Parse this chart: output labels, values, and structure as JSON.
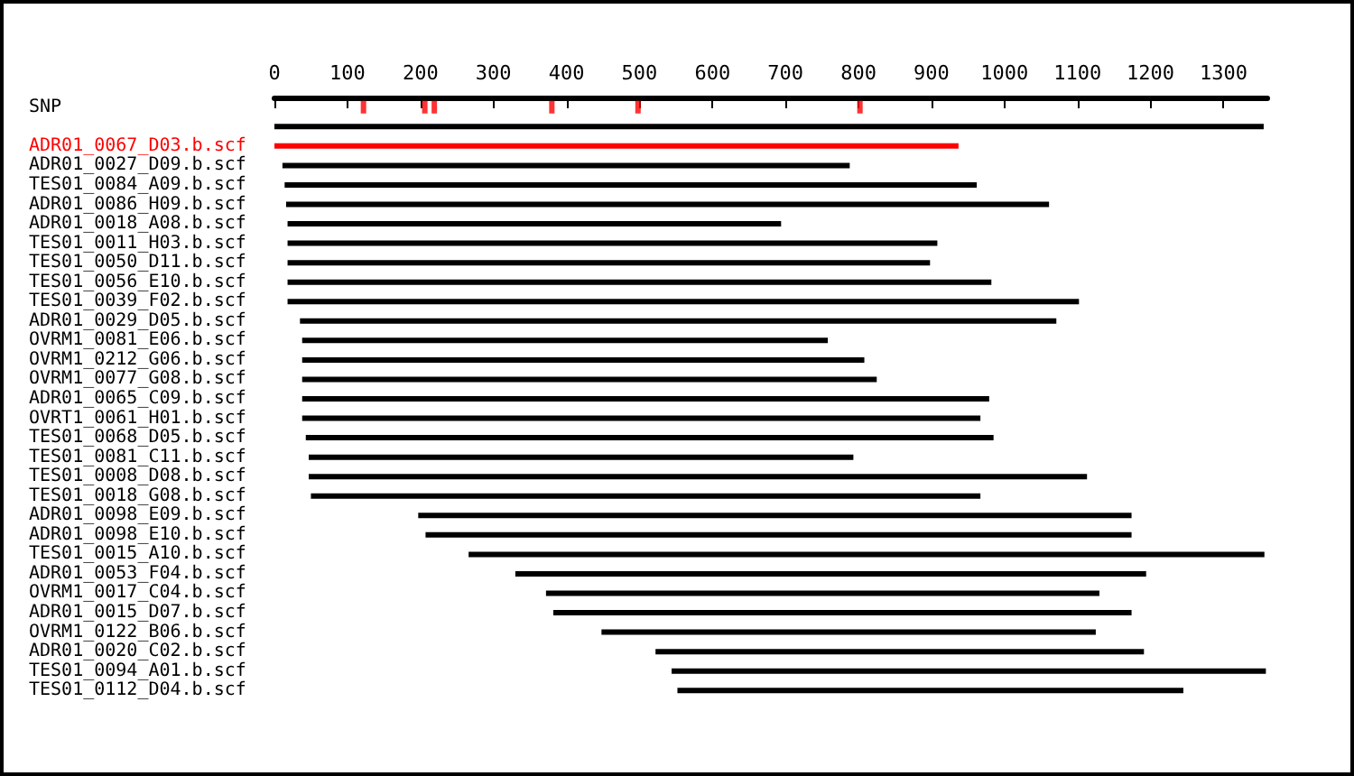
{
  "chart_data": {
    "type": "bar",
    "orientation": "horizontal",
    "categories": [
      "SNP",
      null,
      "ADR01_0067_D03.b.scf",
      "ADR01_0027_D09.b.scf",
      "TES01_0084_A09.b.scf",
      "ADR01_0086_H09.b.scf",
      "ADR01_0018_A08.b.scf",
      "TES01_0011_H03.b.scf",
      "TES01_0050_D11.b.scf",
      "TES01_0056_E10.b.scf",
      "TES01_0039_F02.b.scf",
      "ADR01_0029_D05.b.scf",
      "OVRM1_0081_E06.b.scf",
      "OVRM1_0212_G06.b.scf",
      "OVRM1_0077_G08.b.scf",
      "ADR01_0065_C09.b.scf",
      "OVRT1_0061_H01.b.scf",
      "TES01_0068_D05.b.scf",
      "TES01_0081_C11.b.scf",
      "TES01_0008_D08.b.scf",
      "TES01_0018_G08.b.scf",
      "ADR01_0098_E09.b.scf",
      "ADR01_0098_E10.b.scf",
      "TES01_0015_A10.b.scf",
      "ADR01_0053_F04.b.scf",
      "OVRM1_0017_C04.b.scf",
      "ADR01_0015_D07.b.scf",
      "OVRM1_0122_B06.b.scf",
      "ADR01_0020_C02.b.scf",
      "TES01_0094_A01.b.scf",
      "TES01_0112_D04.b.scf"
    ],
    "series": [
      {
        "base": [
          null,
          0,
          0,
          11,
          14,
          16,
          18,
          18,
          18,
          18,
          18,
          35,
          38,
          38,
          38,
          38,
          38,
          43,
          47,
          47,
          50,
          197,
          207,
          266,
          330,
          372,
          382,
          448,
          522,
          544,
          552
        ],
        "values": [
          null,
          1355,
          937,
          777,
          948,
          1045,
          676,
          890,
          880,
          964,
          1084,
          1036,
          720,
          770,
          787,
          941,
          929,
          942,
          746,
          1066,
          917,
          977,
          967,
          1090,
          864,
          758,
          792,
          677,
          669,
          814,
          693
        ],
        "colors": [
          null,
          "#000000",
          "#ff0000",
          "#000000",
          "#000000",
          "#000000",
          "#000000",
          "#000000",
          "#000000",
          "#000000",
          "#000000",
          "#000000",
          "#000000",
          "#000000",
          "#000000",
          "#000000",
          "#000000",
          "#000000",
          "#000000",
          "#000000",
          "#000000",
          "#000000",
          "#000000",
          "#000000",
          "#000000",
          "#000000",
          "#000000",
          "#000000",
          "#000000",
          "#000000",
          "#000000"
        ]
      },
      {
        "type": "scatter",
        "color": "#ff0000",
        "marker": "square",
        "values": [
          122,
          null,
          null,
          null,
          null,
          null,
          null,
          null,
          null,
          null,
          null,
          null,
          null,
          null,
          null,
          null,
          null,
          null,
          null,
          null,
          null,
          null,
          null,
          null,
          null,
          null,
          null,
          null,
          null,
          null,
          null
        ]
      },
      {
        "type": "scatter",
        "color": "#ff0000",
        "marker": "square",
        "values": [
          206,
          null,
          null,
          null,
          null,
          null,
          null,
          null,
          null,
          null,
          null,
          null,
          null,
          null,
          null,
          null,
          null,
          null,
          null,
          null,
          null,
          null,
          null,
          null,
          null,
          null,
          null,
          null,
          null,
          null,
          null
        ]
      },
      {
        "type": "scatter",
        "color": "#ff0000",
        "marker": "square",
        "values": [
          219,
          null,
          null,
          null,
          null,
          null,
          null,
          null,
          null,
          null,
          null,
          null,
          null,
          null,
          null,
          null,
          null,
          null,
          null,
          null,
          null,
          null,
          null,
          null,
          null,
          null,
          null,
          null,
          null,
          null,
          null
        ]
      },
      {
        "type": "scatter",
        "color": "#ff0000",
        "marker": "square",
        "values": [
          380,
          null,
          null,
          null,
          null,
          null,
          null,
          null,
          null,
          null,
          null,
          null,
          null,
          null,
          null,
          null,
          null,
          null,
          null,
          null,
          null,
          null,
          null,
          null,
          null,
          null,
          null,
          null,
          null,
          null,
          null
        ]
      },
      {
        "type": "scatter",
        "color": "#ff0000",
        "marker": "square",
        "values": [
          498,
          null,
          null,
          null,
          null,
          null,
          null,
          null,
          null,
          null,
          null,
          null,
          null,
          null,
          null,
          null,
          null,
          null,
          null,
          null,
          null,
          null,
          null,
          null,
          null,
          null,
          null,
          null,
          null,
          null,
          null
        ]
      },
      {
        "type": "scatter",
        "color": "#ff0000",
        "marker": "square",
        "values": [
          802,
          null,
          null,
          null,
          null,
          null,
          null,
          null,
          null,
          null,
          null,
          null,
          null,
          null,
          null,
          null,
          null,
          null,
          null,
          null,
          null,
          null,
          null,
          null,
          null,
          null,
          null,
          null,
          null,
          null,
          null
        ]
      }
    ],
    "xlim": [
      0,
      1360
    ],
    "xticks": [
      0,
      100,
      200,
      300,
      400,
      500,
      600,
      700,
      800,
      900,
      1000,
      1100,
      1200,
      1300
    ],
    "grid": false
  }
}
